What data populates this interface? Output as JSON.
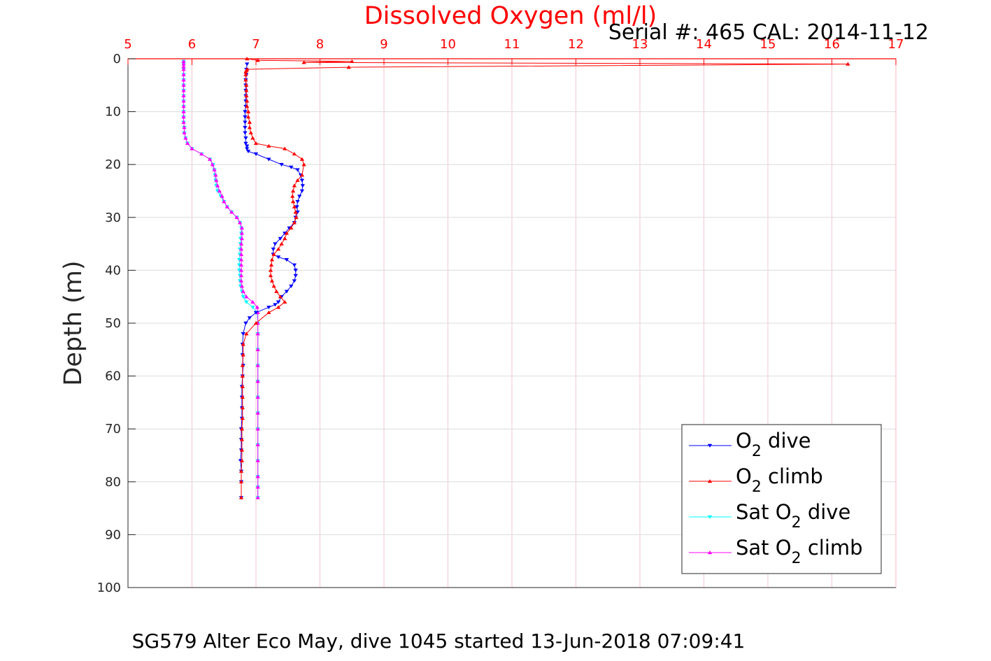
{
  "chart_data": {
    "type": "line",
    "title": "Dissolved Oxygen (ml/l)",
    "subtitle": "Serial #: 465  CAL: 2014-11-12",
    "footer": "SG579 Alter Eco May, dive 1045 started 13-Jun-2018 07:09:41",
    "ylabel": "Depth (m)",
    "xlim": [
      5,
      17
    ],
    "ylim": [
      0,
      100
    ],
    "y_reversed": true,
    "x_axis_position": "top",
    "x_ticks": [
      5,
      6,
      7,
      8,
      9,
      10,
      11,
      12,
      13,
      14,
      15,
      16,
      17
    ],
    "y_ticks": [
      0,
      10,
      20,
      30,
      40,
      50,
      60,
      70,
      80,
      90,
      100
    ],
    "grid": true,
    "legend_position": "bottom-right",
    "colors": {
      "title": "#ff0000",
      "x_axis": "#ff0000",
      "grid_x": "#f4c6cf",
      "grid_y": "#dcdcdc"
    },
    "series": [
      {
        "name": "O2 dive",
        "legend_main": "O",
        "legend_sub": "2",
        "legend_post": " dive",
        "color": "#0000ff",
        "marker": "down",
        "x": [
          6.86,
          6.85,
          6.85,
          6.84,
          6.84,
          6.84,
          6.84,
          6.84,
          6.84,
          6.83,
          6.83,
          6.83,
          6.83,
          6.83,
          6.84,
          6.84,
          6.86,
          6.86,
          6.88,
          7.0,
          7.2,
          7.4,
          7.55,
          7.65,
          7.7,
          7.72,
          7.73,
          7.72,
          7.68,
          7.65,
          7.64,
          7.65,
          7.62,
          7.6,
          7.52,
          7.45,
          7.38,
          7.3,
          7.27,
          7.27,
          7.35,
          7.48,
          7.6,
          7.62,
          7.62,
          7.6,
          7.55,
          7.48,
          7.4,
          7.35,
          7.3,
          7.2,
          7.0,
          6.9,
          6.84,
          6.8,
          6.79,
          6.79,
          6.8,
          6.79,
          6.78,
          6.78,
          6.78,
          6.78,
          6.77,
          6.77,
          6.77,
          6.76,
          6.77,
          6.77,
          6.77
        ],
        "y": [
          1,
          2,
          3,
          4,
          5,
          6,
          7,
          8,
          9,
          10,
          11,
          12,
          13,
          14,
          15,
          16,
          16.5,
          17,
          17.5,
          18,
          19,
          20,
          20.5,
          21,
          22,
          23,
          24,
          25,
          26,
          27,
          28,
          29,
          30,
          31,
          32,
          33,
          34,
          35,
          36,
          37,
          37.5,
          38,
          39,
          40,
          41,
          42,
          43,
          44,
          45,
          46,
          46.5,
          47,
          48,
          49,
          50,
          52,
          54,
          56,
          58,
          60,
          62,
          64,
          66,
          68,
          70,
          72,
          74,
          76,
          78,
          80,
          83
        ]
      },
      {
        "name": "O2 climb",
        "legend_main": "O",
        "legend_sub": "2",
        "legend_post": " climb",
        "color": "#ff0000",
        "marker": "up",
        "x": [
          6.77,
          6.77,
          6.77,
          6.78,
          6.78,
          6.78,
          6.78,
          6.79,
          6.79,
          6.79,
          6.79,
          6.79,
          6.79,
          6.8,
          6.8,
          6.85,
          7.0,
          7.2,
          7.35,
          7.45,
          7.38,
          7.32,
          7.28,
          7.25,
          7.23,
          7.23,
          7.24,
          7.25,
          7.28,
          7.35,
          7.4,
          7.45,
          7.48,
          7.55,
          7.6,
          7.63,
          7.62,
          7.6,
          7.58,
          7.57,
          7.58,
          7.6,
          7.65,
          7.72,
          7.75,
          7.72,
          7.6,
          7.45,
          7.2,
          7.0,
          6.95,
          6.92,
          6.9,
          6.9,
          6.88,
          6.88,
          6.86,
          6.86,
          6.85,
          6.85,
          6.85,
          6.84,
          6.84,
          6.84,
          6.85,
          6.86,
          8.45,
          16.25,
          7.75,
          8.5,
          7.03,
          6.86
        ],
        "y": [
          83,
          80,
          78,
          76,
          74,
          72,
          70,
          68,
          66,
          64,
          62,
          60,
          58,
          56,
          54,
          52,
          50,
          48,
          47,
          46,
          45,
          44,
          43,
          42,
          41,
          40,
          39,
          38,
          37,
          36,
          35,
          34,
          33,
          32,
          31,
          30,
          29,
          28,
          27,
          26,
          25,
          24,
          23,
          22,
          20,
          19,
          18,
          17,
          16.5,
          16,
          15,
          14,
          13,
          12,
          11,
          10,
          9,
          8,
          7,
          6,
          5,
          4,
          3,
          2.5,
          2.2,
          2,
          1.6,
          1,
          0.7,
          0.5,
          0.3,
          0
        ]
      },
      {
        "name": "Sat O2 dive",
        "legend_main": "Sat O",
        "legend_sub": "2",
        "legend_post": " dive",
        "color": "#00ffff",
        "marker": "down",
        "x": [
          5.87,
          5.87,
          5.87,
          5.87,
          5.87,
          5.87,
          5.87,
          5.87,
          5.87,
          5.87,
          5.87,
          5.87,
          5.87,
          5.88,
          5.88,
          5.9,
          5.93,
          6.0,
          6.15,
          6.28,
          6.33,
          6.35,
          6.36,
          6.37,
          6.38,
          6.4,
          6.45,
          6.5,
          6.55,
          6.62,
          6.7,
          6.75,
          6.77,
          6.77,
          6.76,
          6.76,
          6.75,
          6.75,
          6.74,
          6.74,
          6.74,
          6.75,
          6.75,
          6.76,
          6.78,
          6.8,
          6.85,
          6.95,
          7.02,
          7.03,
          7.03,
          7.03,
          7.03,
          7.03,
          7.03,
          7.03,
          7.03,
          7.03,
          7.03,
          7.03,
          7.03,
          7.03
        ],
        "y": [
          0.5,
          1,
          2,
          3,
          4,
          5,
          6,
          7,
          8,
          9,
          10,
          11,
          12,
          13,
          14,
          15,
          16,
          17,
          18,
          19,
          20,
          21,
          22,
          23,
          24,
          25,
          26,
          27,
          28,
          29,
          30,
          31,
          32,
          33,
          34,
          35,
          36,
          37,
          38,
          39,
          40,
          41,
          42,
          43,
          44,
          45,
          46,
          47,
          48,
          50,
          52,
          55,
          58,
          61,
          64,
          67,
          70,
          73,
          76,
          79,
          81,
          83
        ]
      },
      {
        "name": "Sat O2 climb",
        "legend_main": "Sat O",
        "legend_sub": "2",
        "legend_post": " climb",
        "color": "#ff00ff",
        "marker": "up",
        "x": [
          7.03,
          7.03,
          7.03,
          7.03,
          7.03,
          7.03,
          7.03,
          7.03,
          7.03,
          7.03,
          7.03,
          7.03,
          7.03,
          7.03,
          7.02,
          6.95,
          6.85,
          6.8,
          6.78,
          6.77,
          6.77,
          6.77,
          6.77,
          6.77,
          6.77,
          6.77,
          6.77,
          6.78,
          6.78,
          6.78,
          6.75,
          6.7,
          6.62,
          6.55,
          6.5,
          6.47,
          6.43,
          6.4,
          6.38,
          6.37,
          6.35,
          6.32,
          6.28,
          6.15,
          6.0,
          5.93,
          5.9,
          5.88,
          5.88,
          5.87,
          5.87,
          5.87,
          5.87,
          5.87,
          5.87,
          5.87,
          5.87,
          5.87,
          5.87,
          5.87,
          5.87,
          5.87,
          5.87
        ],
        "y": [
          83,
          81,
          79,
          76,
          73,
          70,
          67,
          64,
          61,
          58,
          55,
          52,
          50,
          48,
          47,
          46,
          45,
          44,
          43,
          42,
          41,
          40,
          39,
          38,
          37,
          36,
          35,
          34,
          33,
          32,
          31,
          30,
          29,
          28,
          27,
          26,
          25,
          24,
          23,
          22,
          21,
          20,
          19,
          18,
          17,
          16,
          15,
          14,
          13,
          12,
          11,
          10,
          9,
          8,
          7,
          6,
          5,
          4,
          3,
          2,
          1.5,
          1,
          0.5
        ]
      }
    ]
  }
}
